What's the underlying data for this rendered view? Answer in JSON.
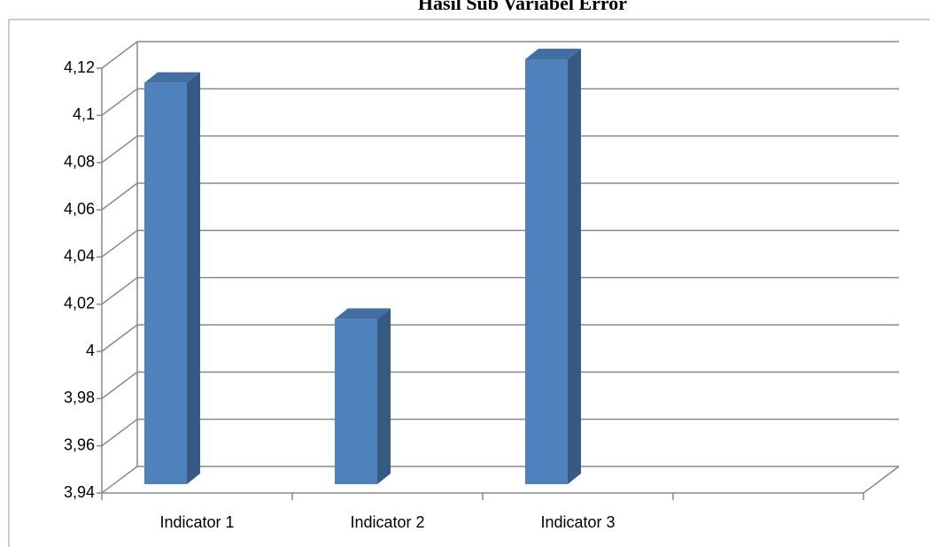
{
  "chart_data": {
    "type": "bar3d",
    "title": "Hasil Sub Variabel Error",
    "categories": [
      "Indicator 1",
      "Indicator 2",
      "Indicator 3",
      null
    ],
    "values": [
      4.11,
      4.01,
      4.12,
      null
    ],
    "color": "#4f81bd",
    "ylim": [
      3.94,
      4.12
    ],
    "yticks": [
      {
        "value": 3.94,
        "label": "3,94"
      },
      {
        "value": 3.96,
        "label": "3,96"
      },
      {
        "value": 3.98,
        "label": "3,98"
      },
      4,
      {
        "value": 4.02,
        "label": "4,02"
      },
      {
        "value": 4.04,
        "label": "4,04"
      },
      {
        "value": 4.06,
        "label": "4,06"
      },
      {
        "value": 4.08,
        "label": "4,08"
      },
      {
        "value": 4.1,
        "label": "4,1"
      },
      {
        "value": 4.12,
        "label": "4,12"
      }
    ],
    "grid": true
  }
}
